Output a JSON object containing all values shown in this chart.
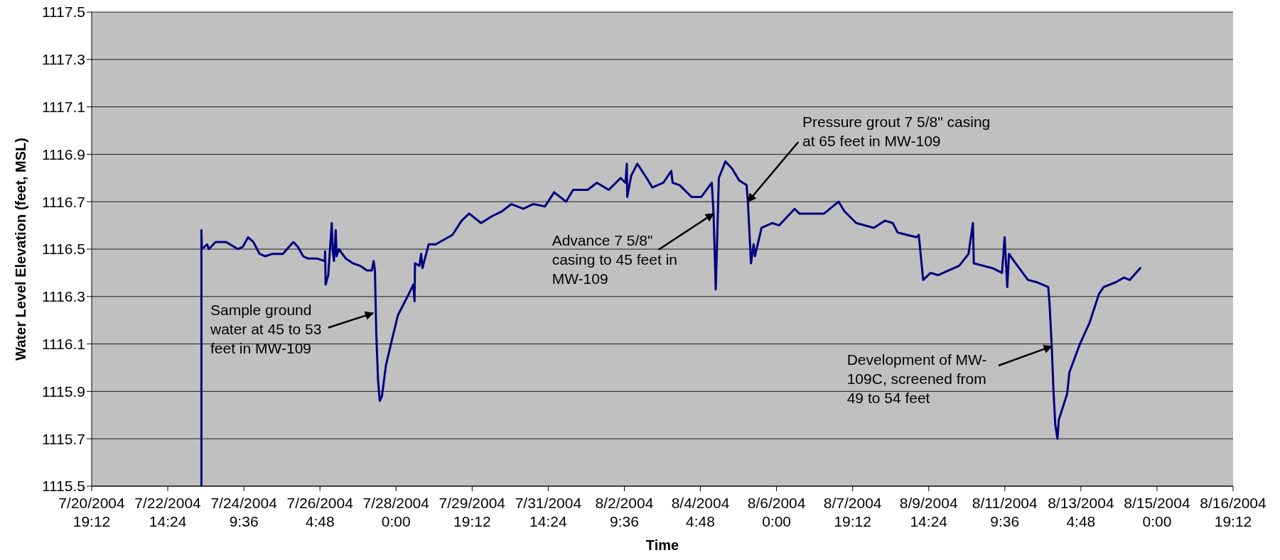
{
  "chart_data": {
    "type": "line",
    "xlabel": "Time",
    "ylabel": "Water Level Elevation (feet, MSL)",
    "xlim": [
      "2004-07-20T19:12",
      "2004-08-16T19:12"
    ],
    "xticks": [
      {
        "value": "2004-07-20T19:12",
        "label": "7/20/2004\n19:12"
      },
      {
        "value": "2004-07-22T14:24",
        "label": "7/22/2004\n14:24"
      },
      {
        "value": "2004-07-24T09:36",
        "label": "7/24/2004\n9:36"
      },
      {
        "value": "2004-07-26T04:48",
        "label": "7/26/2004\n4:48"
      },
      {
        "value": "2004-07-28T00:00",
        "label": "7/28/2004\n0:00"
      },
      {
        "value": "2004-07-29T19:12",
        "label": "7/29/2004\n19:12"
      },
      {
        "value": "2004-07-31T14:24",
        "label": "7/31/2004\n14:24"
      },
      {
        "value": "2004-08-02T09:36",
        "label": "8/2/2004\n9:36"
      },
      {
        "value": "2004-08-04T04:48",
        "label": "8/4/2004\n4:48"
      },
      {
        "value": "2004-08-06T00:00",
        "label": "8/6/2004\n0:00"
      },
      {
        "value": "2004-08-07T19:12",
        "label": "8/7/2004\n19:12"
      },
      {
        "value": "2004-08-09T14:24",
        "label": "8/9/2004\n14:24"
      },
      {
        "value": "2004-08-11T09:36",
        "label": "8/11/2004\n9:36"
      },
      {
        "value": "2004-08-13T04:48",
        "label": "8/13/2004\n4:48"
      },
      {
        "value": "2004-08-15T00:00",
        "label": "8/15/2004\n0:00"
      },
      {
        "value": "2004-08-16T19:12",
        "label": "8/16/2004\n19:12"
      }
    ],
    "ylim": [
      1115.5,
      1117.5
    ],
    "yticks": [
      1115.5,
      1115.7,
      1115.9,
      1116.1,
      1116.3,
      1116.5,
      1116.7,
      1116.9,
      1117.1,
      1117.3,
      1117.5
    ],
    "grid": "y",
    "x": [
      "2004-07-23T09:30",
      "2004-07-23T09:30",
      "2004-07-23T09:45",
      "2004-07-23T12:45",
      "2004-07-23T13:45",
      "2004-07-23T17:30",
      "2004-07-23T23:30",
      "2004-07-24T06:15",
      "2004-07-24T09:00",
      "2004-07-24T12:00",
      "2004-07-24T15:00",
      "2004-07-24T18:30",
      "2004-07-24T21:45",
      "2004-07-25T01:45",
      "2004-07-25T07:45",
      "2004-07-25T11:15",
      "2004-07-25T13:45",
      "2004-07-25T16:15",
      "2004-07-25T19:15",
      "2004-07-25T22:00",
      "2004-07-26T03:15",
      "2004-07-26T07:30",
      "2004-07-26T07:45",
      "2004-07-26T08:00",
      "2004-07-26T09:30",
      "2004-07-26T11:30",
      "2004-07-26T12:00",
      "2004-07-26T12:45",
      "2004-07-26T13:45",
      "2004-07-26T14:15",
      "2004-07-26T15:30",
      "2004-07-26T19:30",
      "2004-07-26T23:30",
      "2004-07-27T03:30",
      "2004-07-27T07:30",
      "2004-07-27T10:15",
      "2004-07-27T11:15",
      "2004-07-27T12:00",
      "2004-07-27T12:45",
      "2004-07-27T13:45",
      "2004-07-27T14:45",
      "2004-07-27T16:00",
      "2004-07-27T18:15",
      "2004-07-27T21:45",
      "2004-07-28T01:00",
      "2004-07-28T06:30",
      "2004-07-28T09:45",
      "2004-07-28T10:30",
      "2004-07-28T10:45",
      "2004-07-28T13:15",
      "2004-07-28T14:15",
      "2004-07-28T15:00",
      "2004-07-28T18:30",
      "2004-07-28T22:30",
      "2004-07-29T08:00",
      "2004-07-29T13:15",
      "2004-07-29T17:30",
      "2004-07-30T00:15",
      "2004-07-30T06:45",
      "2004-07-30T12:15",
      "2004-07-30T17:30",
      "2004-07-31T00:15",
      "2004-07-31T05:45",
      "2004-07-31T12:30",
      "2004-07-31T17:45",
      "2004-08-01T00:30",
      "2004-08-01T04:30",
      "2004-08-01T12:45",
      "2004-08-01T18:00",
      "2004-08-02T00:45",
      "2004-08-02T07:30",
      "2004-08-02T10:15",
      "2004-08-02T11:00",
      "2004-08-02T11:15",
      "2004-08-02T13:30",
      "2004-08-02T17:00",
      "2004-08-02T22:15",
      "2004-08-03T01:30",
      "2004-08-03T07:45",
      "2004-08-03T12:15",
      "2004-08-03T13:00",
      "2004-08-03T17:00",
      "2004-08-03T23:45",
      "2004-08-04T05:15",
      "2004-08-04T09:15",
      "2004-08-04T11:15",
      "2004-08-04T12:15",
      "2004-08-04T13:30",
      "2004-08-04T15:15",
      "2004-08-04T19:00",
      "2004-08-04T22:45",
      "2004-08-05T02:45",
      "2004-08-05T07:00",
      "2004-08-05T07:45",
      "2004-08-05T09:30",
      "2004-08-05T11:00",
      "2004-08-05T11:45",
      "2004-08-05T15:30",
      "2004-08-05T21:30",
      "2004-08-06T01:30",
      "2004-08-06T10:15",
      "2004-08-06T13:00",
      "2004-08-07T03:00",
      "2004-08-07T11:15",
      "2004-08-07T14:30",
      "2004-08-07T21:15",
      "2004-08-08T07:15",
      "2004-08-08T13:30",
      "2004-08-08T18:00",
      "2004-08-08T20:45",
      "2004-08-09T07:30",
      "2004-08-09T08:45",
      "2004-08-09T11:15",
      "2004-08-09T15:30",
      "2004-08-09T19:45",
      "2004-08-10T07:45",
      "2004-08-10T13:00",
      "2004-08-10T15:30",
      "2004-08-10T16:00",
      "2004-08-10T21:15",
      "2004-08-11T02:30",
      "2004-08-11T08:00",
      "2004-08-11T09:30",
      "2004-08-11T11:00",
      "2004-08-11T12:00",
      "2004-08-11T14:45",
      "2004-08-11T22:45",
      "2004-08-12T04:00",
      "2004-08-12T10:15",
      "2004-08-12T11:00",
      "2004-08-12T12:15",
      "2004-08-12T13:15",
      "2004-08-12T14:15",
      "2004-08-12T15:30",
      "2004-08-12T16:15",
      "2004-08-12T21:00",
      "2004-08-12T22:15",
      "2004-08-13T04:15",
      "2004-08-13T09:45",
      "2004-08-13T15:00",
      "2004-08-13T17:45",
      "2004-08-14T00:30",
      "2004-08-14T05:15",
      "2004-08-14T08:30",
      "2004-08-14T14:30"
    ],
    "series": [
      {
        "color": "#000080",
        "values": [
          1115.5,
          1116.58,
          1116.5,
          1116.52,
          1116.5,
          1116.53,
          1116.53,
          1116.5,
          1116.51,
          1116.55,
          1116.53,
          1116.48,
          1116.47,
          1116.48,
          1116.48,
          1116.51,
          1116.53,
          1116.51,
          1116.47,
          1116.46,
          1116.46,
          1116.45,
          1116.49,
          1116.35,
          1116.39,
          1116.61,
          1116.5,
          1116.45,
          1116.58,
          1116.47,
          1116.5,
          1116.46,
          1116.44,
          1116.43,
          1116.41,
          1116.41,
          1116.45,
          1116.41,
          1116.15,
          1115.95,
          1115.86,
          1115.88,
          1116.01,
          1116.12,
          1116.22,
          1116.3,
          1116.35,
          1116.28,
          1116.44,
          1116.43,
          1116.48,
          1116.42,
          1116.52,
          1116.52,
          1116.56,
          1116.62,
          1116.65,
          1116.61,
          1116.64,
          1116.66,
          1116.69,
          1116.67,
          1116.69,
          1116.68,
          1116.74,
          1116.7,
          1116.75,
          1116.75,
          1116.78,
          1116.75,
          1116.8,
          1116.78,
          1116.86,
          1116.72,
          1116.81,
          1116.86,
          1116.8,
          1116.76,
          1116.78,
          1116.83,
          1116.78,
          1116.77,
          1116.72,
          1116.72,
          1116.76,
          1116.78,
          1116.65,
          1116.33,
          1116.8,
          1116.87,
          1116.84,
          1116.79,
          1116.77,
          1116.7,
          1116.44,
          1116.52,
          1116.47,
          1116.59,
          1116.61,
          1116.6,
          1116.67,
          1116.65,
          1116.65,
          1116.7,
          1116.66,
          1116.61,
          1116.59,
          1116.62,
          1116.61,
          1116.57,
          1116.55,
          1116.56,
          1116.37,
          1116.4,
          1116.39,
          1116.43,
          1116.48,
          1116.61,
          1116.44,
          1116.43,
          1116.42,
          1116.4,
          1116.55,
          1116.34,
          1116.48,
          1116.45,
          1116.37,
          1116.36,
          1116.34,
          1116.27,
          1116.09,
          1115.9,
          1115.76,
          1115.7,
          1115.78,
          1115.89,
          1115.98,
          1116.1,
          1116.19,
          1116.31,
          1116.34,
          1116.36,
          1116.38,
          1116.37,
          1116.42
        ]
      }
    ],
    "annotations": [
      {
        "text": "Sample ground water at 45 to 53 feet in MW-109",
        "x": "2004-07-27T11:00",
        "y": 1116.23
      },
      {
        "text": "Advance 7 5/8\" casing to 45 feet in MW-109",
        "x": "2004-08-04T12:15",
        "y": 1116.65
      },
      {
        "text": "Pressure grout 7 5/8\" casing at 65 feet in MW-109",
        "x": "2004-08-05T07:45",
        "y": 1116.7
      },
      {
        "text": "Development of MW-109C, screened from 49 to 54 feet",
        "x": "2004-08-12T12:15",
        "y": 1116.09
      }
    ]
  }
}
